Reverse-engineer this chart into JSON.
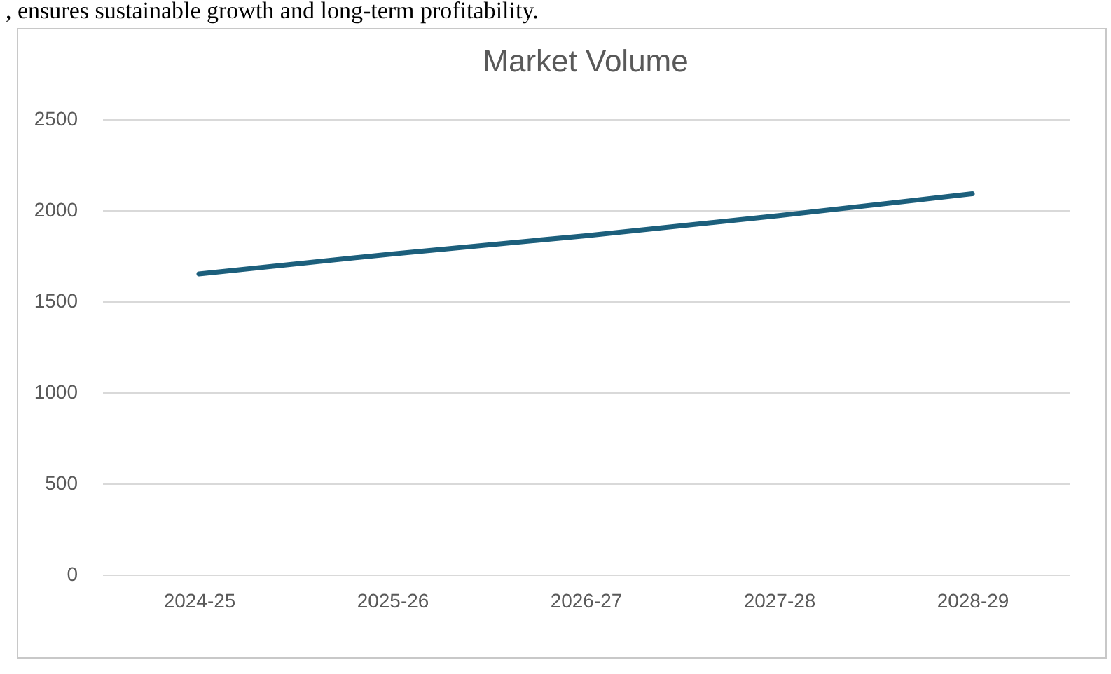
{
  "chart_data": {
    "type": "line",
    "title": "Market Volume",
    "annotations": [
      ", ensures sustainable growth and long-term profitability."
    ],
    "categories": [
      "2024-25",
      "2025-26",
      "2026-27",
      "2027-28",
      "2028-29"
    ],
    "series": [
      {
        "color": "#1c5f7c",
        "values": [
          1650,
          1760,
          1860,
          1970,
          2090
        ]
      }
    ],
    "ylim": [
      0,
      2500
    ],
    "yticks": [
      0,
      500,
      1000,
      1500,
      2000,
      2500
    ],
    "grid": "y",
    "marker": "none",
    "line_style": "solid"
  }
}
